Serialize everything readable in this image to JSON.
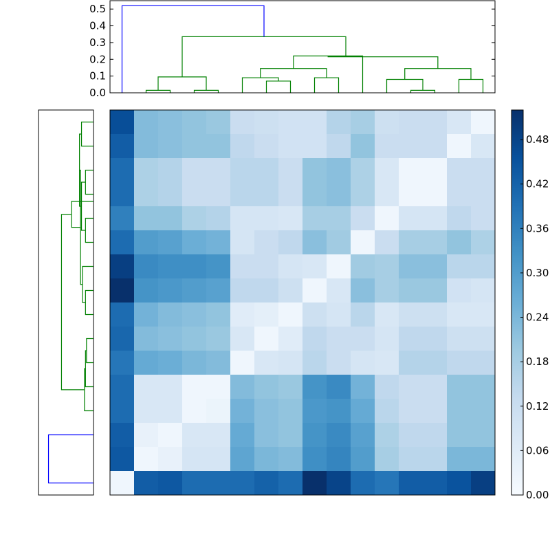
{
  "chart_data": [
    {
      "type": "dendrogram",
      "position": "top",
      "yticks": [
        "0.0",
        "0.1",
        "0.2",
        "0.3",
        "0.4",
        "0.5"
      ],
      "ylim": [
        0,
        0.55
      ],
      "xlim": [
        0,
        160
      ],
      "leaf_count": 16,
      "colors": {
        "cluster": "#008000",
        "root": "#0000ff"
      },
      "links": [
        {
          "x": [
            15,
            15,
            25,
            25
          ],
          "y": [
            0,
            0.015,
            0.015,
            0
          ],
          "color": "cluster"
        },
        {
          "x": [
            35,
            35,
            45,
            45
          ],
          "y": [
            0,
            0.015,
            0.015,
            0
          ],
          "color": "cluster"
        },
        {
          "x": [
            20,
            20,
            40,
            40
          ],
          "y": [
            0.015,
            0.095,
            0.095,
            0.015
          ],
          "color": "cluster"
        },
        {
          "x": [
            65,
            65,
            75,
            75
          ],
          "y": [
            0,
            0.07,
            0.07,
            0
          ],
          "color": "cluster"
        },
        {
          "x": [
            55,
            55,
            70,
            70
          ],
          "y": [
            0,
            0.09,
            0.09,
            0.07
          ],
          "color": "cluster"
        },
        {
          "x": [
            85,
            85,
            95,
            95
          ],
          "y": [
            0,
            0.09,
            0.09,
            0
          ],
          "color": "cluster"
        },
        {
          "x": [
            62.5,
            62.5,
            90,
            90
          ],
          "y": [
            0.09,
            0.145,
            0.145,
            0.09
          ],
          "color": "cluster"
        },
        {
          "x": [
            76.25,
            76.25,
            105,
            105
          ],
          "y": [
            0.145,
            0.22,
            0.22,
            0
          ],
          "color": "cluster"
        },
        {
          "x": [
            125,
            125,
            135,
            135
          ],
          "y": [
            0,
            0.015,
            0.015,
            0
          ],
          "color": "cluster"
        },
        {
          "x": [
            115,
            115,
            130,
            130
          ],
          "y": [
            0,
            0.08,
            0.08,
            0.015
          ],
          "color": "cluster"
        },
        {
          "x": [
            145,
            145,
            155,
            155
          ],
          "y": [
            0,
            0.08,
            0.08,
            0
          ],
          "color": "cluster"
        },
        {
          "x": [
            122.5,
            122.5,
            150,
            150
          ],
          "y": [
            0.08,
            0.145,
            0.145,
            0.08
          ],
          "color": "cluster"
        },
        {
          "x": [
            136.25,
            136.25,
            90.625,
            90.625
          ],
          "y": [
            0.145,
            0.215,
            0.215,
            0.22
          ],
          "color": "cluster"
        },
        {
          "x": [
            30,
            30,
            98,
            98
          ],
          "y": [
            0.095,
            0.335,
            0.335,
            0.215
          ],
          "color": "cluster"
        },
        {
          "x": [
            5,
            5,
            64,
            64
          ],
          "y": [
            0,
            0.52,
            0.52,
            0.335
          ],
          "color": "root"
        }
      ]
    },
    {
      "type": "dendrogram",
      "position": "left",
      "xlim": [
        0.55,
        0
      ],
      "ylim": [
        0,
        160
      ],
      "leaf_count": 16,
      "colors": {
        "cluster": "#008000",
        "root": "#0000ff"
      },
      "links": [
        {
          "y": [
            5,
            5,
            25,
            25
          ],
          "x": [
            0,
            0.45,
            0.45,
            0
          ],
          "color": "root"
        },
        {
          "y": [
            55,
            55,
            65,
            65
          ],
          "x": [
            0,
            0.07,
            0.07,
            0
          ],
          "color": "cluster"
        },
        {
          "y": [
            45,
            45,
            60,
            60
          ],
          "x": [
            0,
            0.08,
            0.08,
            0.07
          ],
          "color": "cluster"
        },
        {
          "y": [
            35,
            35,
            52.5,
            52.5
          ],
          "x": [
            0,
            0.09,
            0.09,
            0.08
          ],
          "color": "cluster"
        },
        {
          "y": [
            75,
            75,
            85,
            85
          ],
          "x": [
            0,
            0.08,
            0.08,
            0
          ],
          "color": "cluster"
        },
        {
          "y": [
            80,
            80,
            95,
            95
          ],
          "x": [
            0.08,
            0.11,
            0.11,
            0
          ],
          "color": "cluster"
        },
        {
          "y": [
            105,
            105,
            115,
            115
          ],
          "x": [
            0,
            0.08,
            0.08,
            0
          ],
          "color": "cluster"
        },
        {
          "y": [
            125,
            125,
            135,
            135
          ],
          "x": [
            0,
            0.08,
            0.08,
            0
          ],
          "color": "cluster"
        },
        {
          "y": [
            110,
            110,
            130,
            130
          ],
          "x": [
            0.08,
            0.12,
            0.12,
            0.08
          ],
          "color": "cluster"
        },
        {
          "y": [
            145,
            145,
            155,
            155
          ],
          "x": [
            0,
            0.12,
            0.12,
            0
          ],
          "color": "cluster"
        },
        {
          "y": [
            120,
            120,
            150,
            150
          ],
          "x": [
            0.12,
            0.14,
            0.14,
            0.12
          ],
          "color": "cluster"
        },
        {
          "y": [
            87.5,
            87.5,
            135,
            135
          ],
          "x": [
            0.11,
            0.13,
            0.13,
            0.14
          ],
          "color": "cluster"
        },
        {
          "y": [
            111.25,
            111.25,
            122,
            122
          ],
          "x": [
            0.13,
            0.22,
            0.22,
            0
          ],
          "color": "cluster"
        },
        {
          "y": [
            43.75,
            43.75,
            116.6,
            116.6
          ],
          "x": [
            0.09,
            0.32,
            0.32,
            0.22
          ],
          "color": "cluster"
        }
      ]
    },
    {
      "type": "heatmap",
      "colormap": "Blues",
      "vmin": 0,
      "vmax": 0.52,
      "rows": 16,
      "cols": 16,
      "values": [
        [
          0.46,
          0.23,
          0.22,
          0.21,
          0.2,
          0.12,
          0.11,
          0.1,
          0.1,
          0.16,
          0.18,
          0.11,
          0.12,
          0.12,
          0.08,
          0.02
        ],
        [
          0.43,
          0.23,
          0.22,
          0.21,
          0.21,
          0.14,
          0.12,
          0.1,
          0.1,
          0.14,
          0.21,
          0.12,
          0.12,
          0.12,
          0.02,
          0.08
        ],
        [
          0.4,
          0.17,
          0.16,
          0.12,
          0.12,
          0.15,
          0.15,
          0.12,
          0.21,
          0.22,
          0.17,
          0.08,
          0.02,
          0.02,
          0.12,
          0.12
        ],
        [
          0.4,
          0.17,
          0.16,
          0.12,
          0.12,
          0.15,
          0.15,
          0.12,
          0.21,
          0.22,
          0.17,
          0.08,
          0.02,
          0.02,
          0.12,
          0.12
        ],
        [
          0.36,
          0.21,
          0.21,
          0.17,
          0.16,
          0.09,
          0.09,
          0.08,
          0.18,
          0.18,
          0.12,
          0.02,
          0.09,
          0.09,
          0.14,
          0.12
        ],
        [
          0.4,
          0.3,
          0.29,
          0.26,
          0.25,
          0.09,
          0.12,
          0.14,
          0.22,
          0.19,
          0.02,
          0.12,
          0.18,
          0.18,
          0.21,
          0.17
        ],
        [
          0.49,
          0.34,
          0.33,
          0.33,
          0.32,
          0.12,
          0.12,
          0.09,
          0.08,
          0.02,
          0.19,
          0.18,
          0.22,
          0.22,
          0.15,
          0.15
        ],
        [
          0.52,
          0.32,
          0.31,
          0.3,
          0.29,
          0.14,
          0.14,
          0.11,
          0.02,
          0.08,
          0.22,
          0.18,
          0.2,
          0.2,
          0.1,
          0.09
        ],
        [
          0.4,
          0.25,
          0.23,
          0.22,
          0.21,
          0.06,
          0.05,
          0.02,
          0.11,
          0.09,
          0.15,
          0.08,
          0.11,
          0.11,
          0.08,
          0.08
        ],
        [
          0.41,
          0.23,
          0.22,
          0.21,
          0.2,
          0.08,
          0.02,
          0.06,
          0.14,
          0.12,
          0.12,
          0.09,
          0.14,
          0.14,
          0.11,
          0.11
        ],
        [
          0.38,
          0.27,
          0.26,
          0.24,
          0.23,
          0.02,
          0.08,
          0.09,
          0.15,
          0.12,
          0.09,
          0.08,
          0.16,
          0.16,
          0.14,
          0.14
        ],
        [
          0.4,
          0.08,
          0.08,
          0.02,
          0.02,
          0.23,
          0.21,
          0.2,
          0.32,
          0.34,
          0.25,
          0.14,
          0.12,
          0.12,
          0.21,
          0.21
        ],
        [
          0.4,
          0.08,
          0.08,
          0.02,
          0.03,
          0.25,
          0.22,
          0.21,
          0.31,
          0.32,
          0.27,
          0.15,
          0.12,
          0.12,
          0.21,
          0.21
        ],
        [
          0.43,
          0.04,
          0.02,
          0.08,
          0.08,
          0.27,
          0.22,
          0.21,
          0.32,
          0.34,
          0.29,
          0.17,
          0.14,
          0.14,
          0.21,
          0.21
        ],
        [
          0.44,
          0.02,
          0.04,
          0.09,
          0.09,
          0.28,
          0.24,
          0.23,
          0.33,
          0.35,
          0.3,
          0.18,
          0.15,
          0.15,
          0.24,
          0.24
        ],
        [
          0.02,
          0.43,
          0.44,
          0.4,
          0.4,
          0.4,
          0.42,
          0.4,
          0.52,
          0.48,
          0.4,
          0.38,
          0.43,
          0.43,
          0.45,
          0.49
        ]
      ]
    },
    {
      "type": "colorbar",
      "ticks": [
        "0.00",
        "0.06",
        "0.12",
        "0.18",
        "0.24",
        "0.30",
        "0.36",
        "0.42",
        "0.48"
      ],
      "range": [
        0,
        0.52
      ]
    }
  ]
}
